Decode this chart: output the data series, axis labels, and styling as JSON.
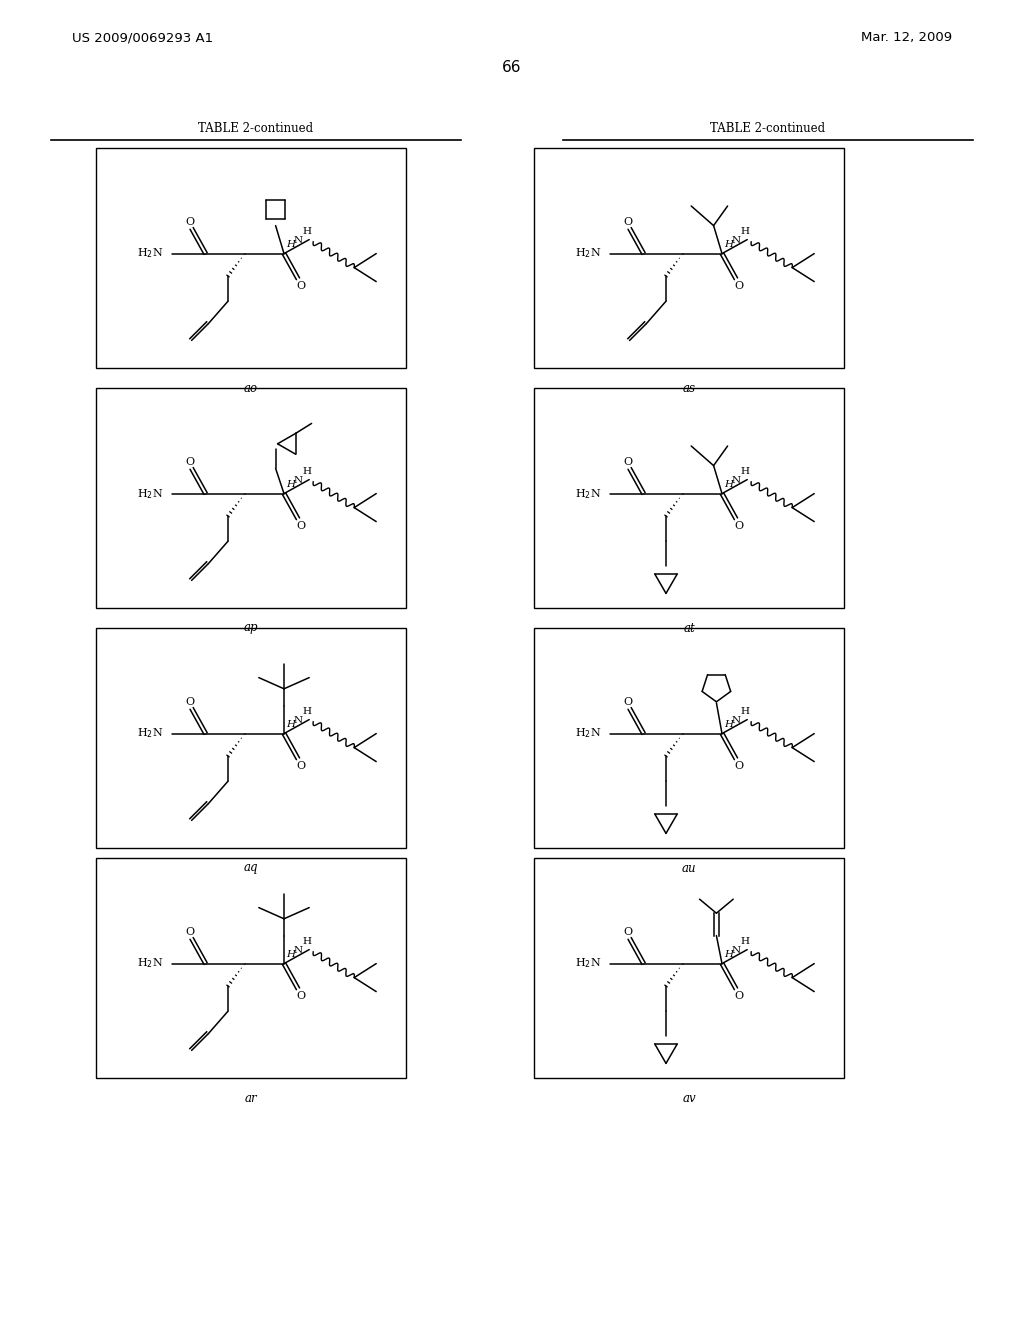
{
  "background_color": "#ffffff",
  "header_left": "US 2009/0069293 A1",
  "header_right": "Mar. 12, 2009",
  "page_number": "66",
  "table_title": "TABLE 2-continued",
  "compounds": [
    {
      "label": "ao",
      "col": 0,
      "row": 0
    },
    {
      "label": "as",
      "col": 1,
      "row": 0
    },
    {
      "label": "ap",
      "col": 0,
      "row": 1
    },
    {
      "label": "at",
      "col": 1,
      "row": 1
    },
    {
      "label": "aq",
      "col": 0,
      "row": 2
    },
    {
      "label": "au",
      "col": 1,
      "row": 2
    },
    {
      "label": "ar",
      "col": 0,
      "row": 3
    },
    {
      "label": "av",
      "col": 1,
      "row": 3
    }
  ]
}
